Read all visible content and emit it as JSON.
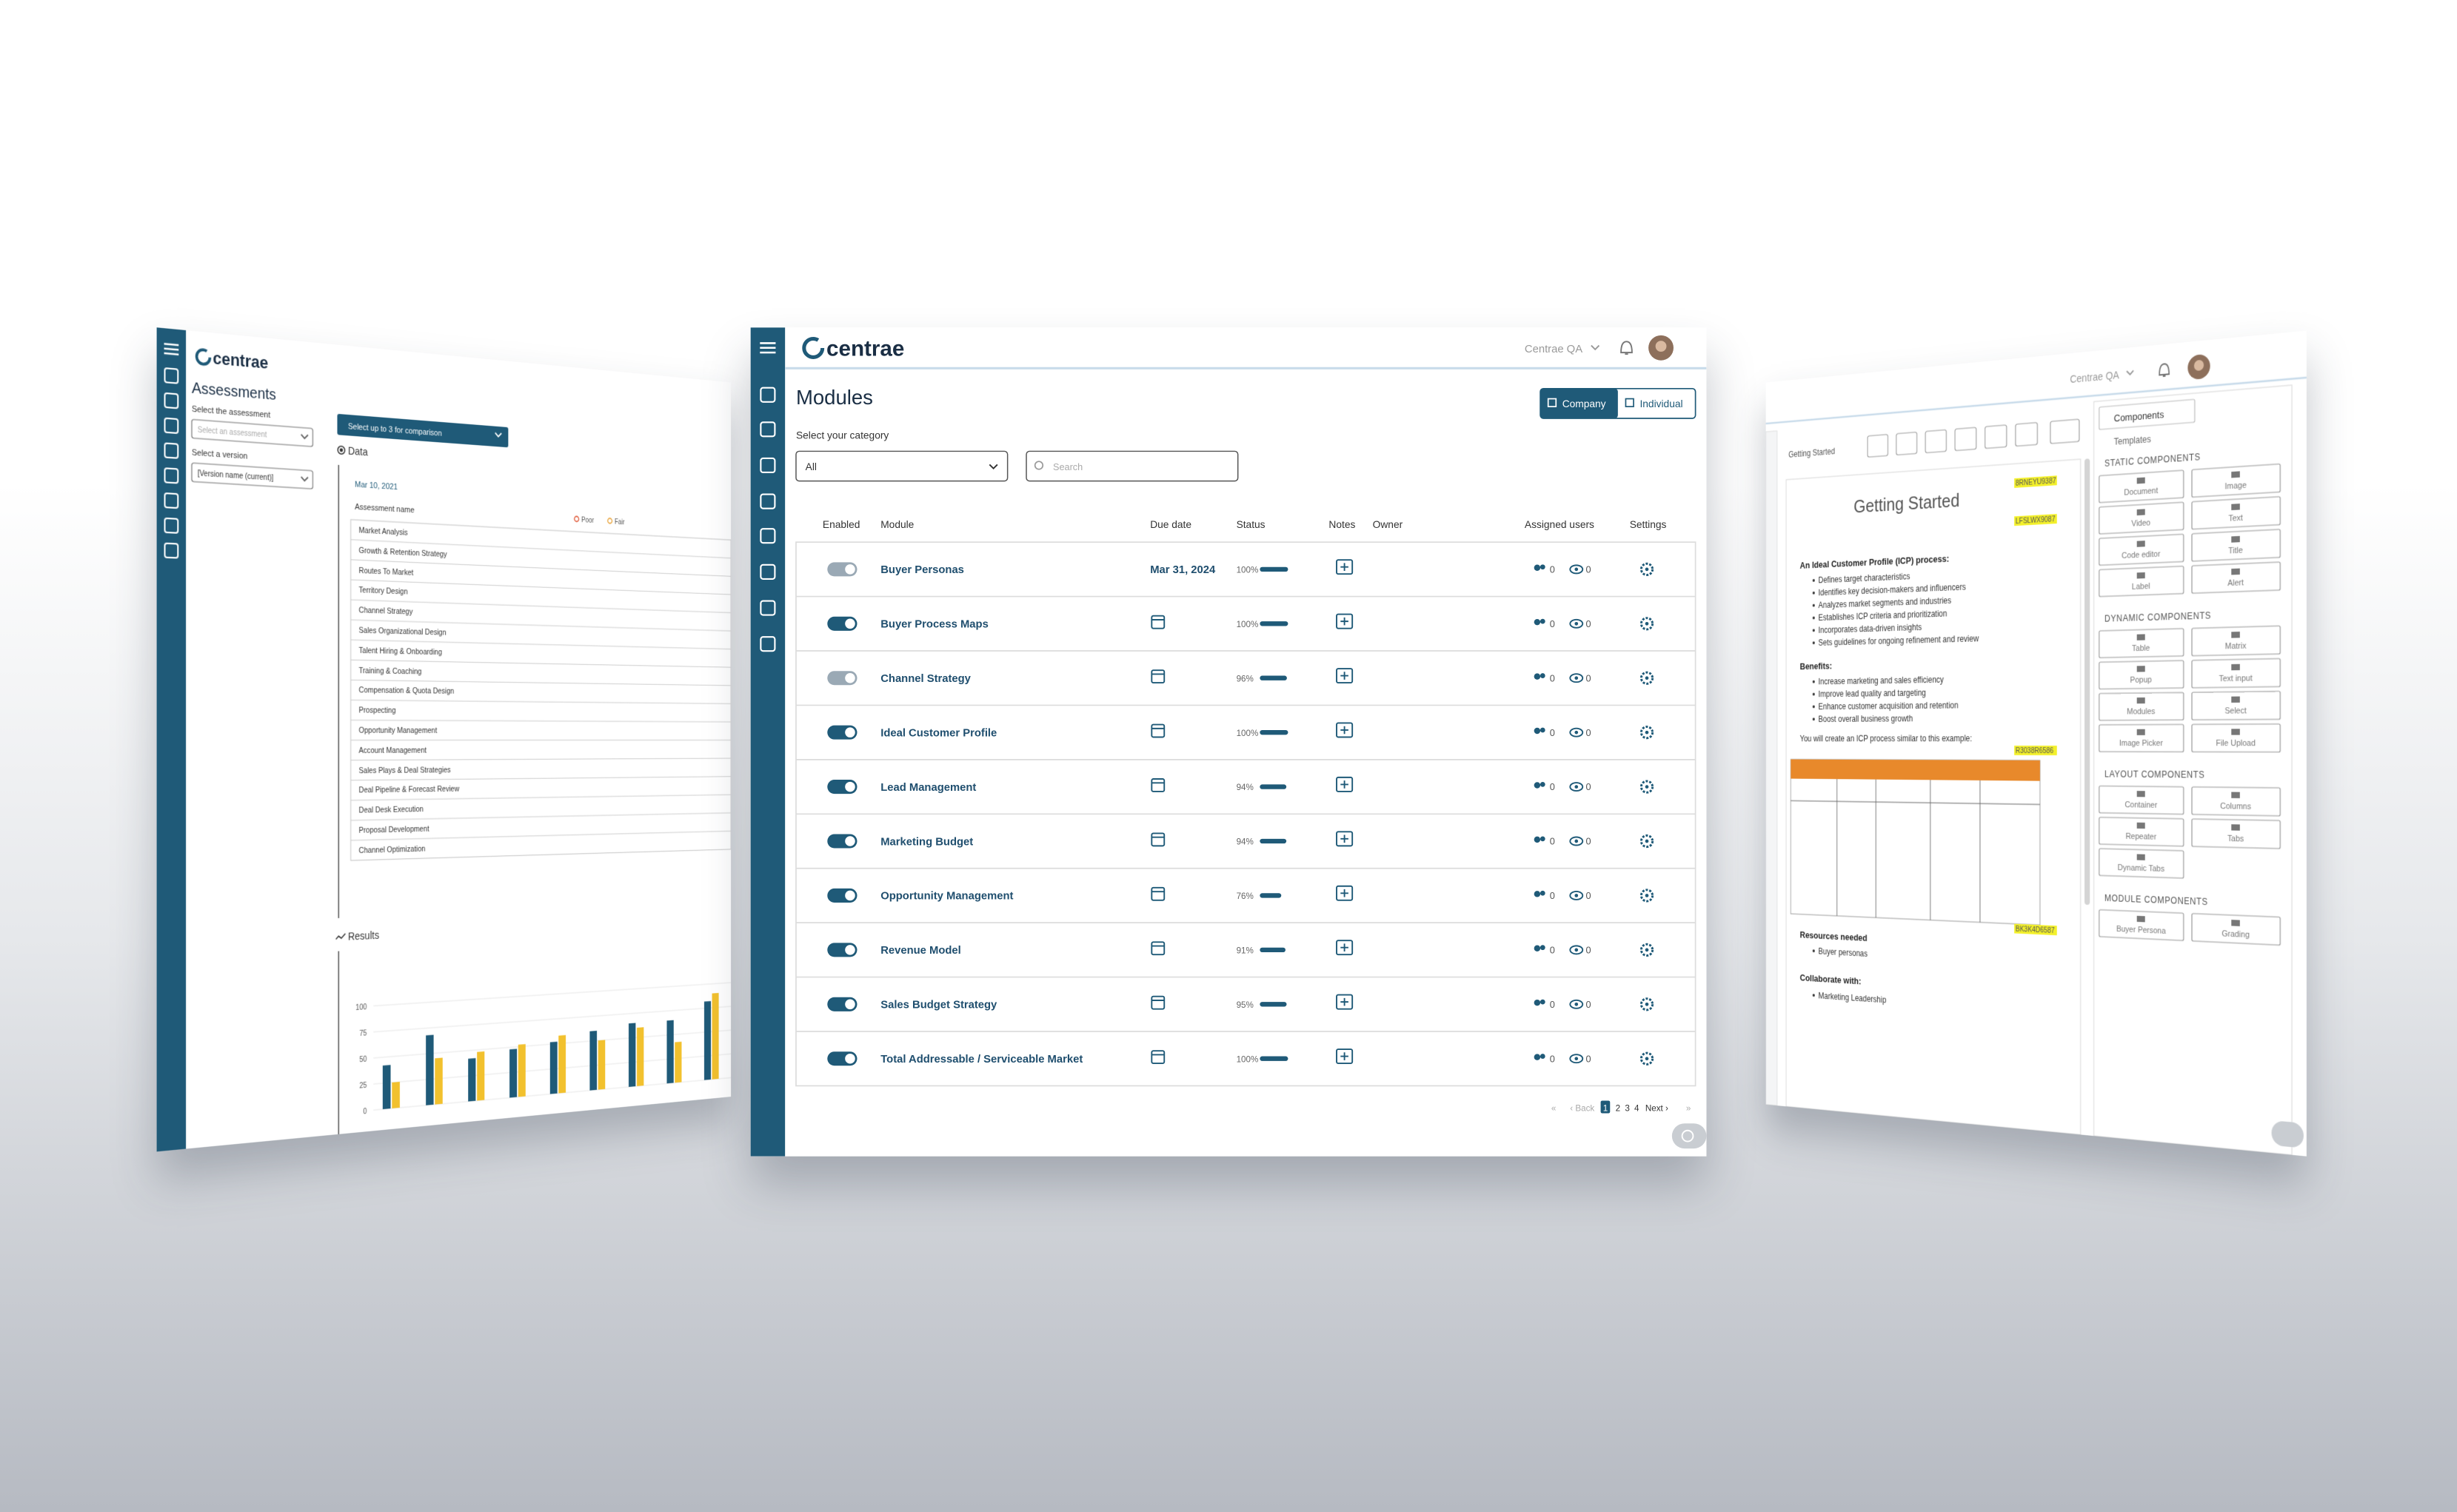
{
  "left_panel": {
    "logo": "centrae",
    "title": "Assessments",
    "assessment_label": "Select the assessment",
    "assessment_placeholder": "Select an assessment",
    "version_label": "Select a version",
    "version_value": "[Version name (current)]",
    "compare_button": "Select up to 3 for comparison",
    "data_heading": "Data",
    "date": "Mar 10, 2021",
    "column_header": "Assessment name",
    "legend": [
      "Poor",
      "Fair"
    ],
    "assessments": [
      "Market Analysis",
      "Growth & Retention Strategy",
      "Routes To Market",
      "Territory Design",
      "Channel Strategy",
      "Sales Organizational Design",
      "Talent Hiring & Onboarding",
      "Training & Coaching",
      "Compensation & Quota Design",
      "Prospecting",
      "Opportunity Management",
      "Account Management",
      "Sales Plays & Deal Strategies",
      "Deal Pipeline & Forecast Review",
      "Deal Desk Execution",
      "Proposal Development",
      "Channel Optimization"
    ],
    "results_heading": "Results",
    "chart": {
      "type": "bar",
      "ylim": [
        0,
        100
      ],
      "yticks": [
        0,
        25,
        50,
        75,
        100
      ],
      "series": [
        {
          "color": "#1f5a78",
          "values": [
            42,
            68,
            42,
            48,
            52,
            60,
            65,
            65,
            82
          ]
        },
        {
          "color": "#f2c12e",
          "values": [
            25,
            45,
            48,
            52,
            58,
            50,
            60,
            42,
            90
          ]
        }
      ]
    }
  },
  "main_panel": {
    "logo": "centrae",
    "workspace": "Centrae QA",
    "title": "Modules",
    "view_options": [
      "Company",
      "Individual"
    ],
    "category_label": "Select your category",
    "category_value": "All",
    "search_placeholder": "Search",
    "columns": [
      "Enabled",
      "Module",
      "Due date",
      "Status",
      "Notes",
      "Owner",
      "Assigned users",
      "Settings"
    ],
    "rows": [
      {
        "enabled": false,
        "module": "Buyer Personas",
        "due_date": "Mar 31, 2024",
        "status": 100,
        "status_label": "100%",
        "assigned": 0,
        "viewers": 0
      },
      {
        "enabled": true,
        "module": "Buyer Process Maps",
        "due_date": null,
        "status": 100,
        "status_label": "100%",
        "assigned": 0,
        "viewers": 0
      },
      {
        "enabled": false,
        "module": "Channel Strategy",
        "due_date": null,
        "status": 96,
        "status_label": "96%",
        "assigned": 0,
        "viewers": 0
      },
      {
        "enabled": true,
        "module": "Ideal Customer Profile",
        "due_date": null,
        "status": 100,
        "status_label": "100%",
        "assigned": 0,
        "viewers": 0
      },
      {
        "enabled": true,
        "module": "Lead Management",
        "due_date": null,
        "status": 94,
        "status_label": "94%",
        "assigned": 0,
        "viewers": 0
      },
      {
        "enabled": true,
        "module": "Marketing Budget",
        "due_date": null,
        "status": 94,
        "status_label": "94%",
        "assigned": 0,
        "viewers": 0
      },
      {
        "enabled": true,
        "module": "Opportunity Management",
        "due_date": null,
        "status": 76,
        "status_label": "76%",
        "assigned": 0,
        "viewers": 0
      },
      {
        "enabled": true,
        "module": "Revenue Model",
        "due_date": null,
        "status": 91,
        "status_label": "91%",
        "assigned": 0,
        "viewers": 0
      },
      {
        "enabled": true,
        "module": "Sales Budget Strategy",
        "due_date": null,
        "status": 95,
        "status_label": "95%",
        "assigned": 0,
        "viewers": 0
      },
      {
        "enabled": true,
        "module": "Total Addressable / Serviceable Market",
        "due_date": null,
        "status": 100,
        "status_label": "100%",
        "assigned": 0,
        "viewers": 0
      }
    ],
    "pagination": [
      "«",
      "‹ Back",
      "1",
      "2",
      "3",
      "4",
      "Next ›",
      "»"
    ]
  },
  "right_panel": {
    "workspace": "Centrae QA",
    "tab_label": "Getting Started",
    "heading": "Getting Started",
    "tags": [
      "8RNEYU9387",
      "LFSLWX9087",
      "R3038R6586",
      "BK3K4D6587"
    ],
    "icp_heading": "An Ideal Customer Profile (ICP) process:",
    "icp_points": [
      "Defines target characteristics",
      "Identifies key decision-makers and influencers",
      "Analyzes market segments and industries",
      "Establishes ICP criteria and prioritization",
      "Incorporates data-driven insights",
      "Sets guidelines for ongoing refinement and review"
    ],
    "benefits_heading": "Benefits:",
    "benefits": [
      "Increase marketing and sales efficiency",
      "Improve lead quality and targeting",
      "Enhance customer acquisition and retention",
      "Boost overall business growth"
    ],
    "example_text": "You will create an ICP process similar to this example:",
    "resources_heading": "Resources needed",
    "resources": [
      "Buyer personas"
    ],
    "collaborate_heading": "Collaborate with:",
    "collaborators": [
      "Marketing Leadership"
    ],
    "components_tab": "Components",
    "templates_tab": "Templates",
    "component_groups": [
      {
        "title": "STATIC COMPONENTS",
        "items": [
          "Document",
          "Image",
          "Video",
          "Text",
          "Code editor",
          "Title",
          "Label",
          "Alert"
        ]
      },
      {
        "title": "DYNAMIC COMPONENTS",
        "items": [
          "Table",
          "Matrix",
          "Popup",
          "Text input",
          "Modules",
          "Select",
          "Image Picker",
          "File Upload"
        ]
      },
      {
        "title": "LAYOUT COMPONENTS",
        "items": [
          "Container",
          "Columns",
          "Repeater",
          "Tabs",
          "Dynamic Tabs"
        ]
      },
      {
        "title": "MODULE COMPONENTS",
        "items": [
          "Buyer Persona",
          "Grading"
        ]
      }
    ]
  }
}
